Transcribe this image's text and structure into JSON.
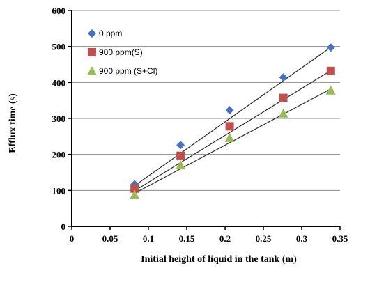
{
  "chart_data": {
    "type": "scatter",
    "title": "",
    "xlabel": "Initial height of liquid in the tank (m)",
    "ylabel": "Efflux time (s)",
    "xlim": [
      0,
      0.35
    ],
    "ylim": [
      0,
      600
    ],
    "x_ticks": [
      0,
      0.05,
      0.1,
      0.15,
      0.2,
      0.25,
      0.3,
      0.35
    ],
    "x_tick_labels": [
      "0",
      "0.05",
      "0.1",
      "0.15",
      "0.2",
      "0.25",
      "0.3",
      "0.35"
    ],
    "y_ticks": [
      0,
      100,
      200,
      300,
      400,
      500,
      600
    ],
    "y_tick_labels": [
      "0",
      "100",
      "200",
      "300",
      "400",
      "500",
      "600"
    ],
    "grid": "horizontal",
    "legend_position": "top-left",
    "series": [
      {
        "name": "0 ppm",
        "marker": "diamond",
        "color": "#4472C4",
        "x": [
          0.082,
          0.142,
          0.206,
          0.276,
          0.338
        ],
        "y": [
          117,
          226,
          323,
          414,
          497
        ],
        "trendline": [
          [
            0.082,
            113
          ],
          [
            0.338,
            498
          ]
        ]
      },
      {
        "name": "900 ppm(S)",
        "marker": "square",
        "color": "#C0504D",
        "x": [
          0.082,
          0.142,
          0.206,
          0.276,
          0.338
        ],
        "y": [
          105,
          196,
          278,
          357,
          432
        ],
        "trendline": [
          [
            0.082,
            99
          ],
          [
            0.338,
            433
          ]
        ]
      },
      {
        "name": "900 ppm (S+Cl)",
        "marker": "triangle",
        "color": "#9BBB59",
        "x": [
          0.082,
          0.142,
          0.206,
          0.276,
          0.338
        ],
        "y": [
          88,
          170,
          246,
          314,
          378
        ],
        "trendline": [
          [
            0.082,
            92
          ],
          [
            0.338,
            382
          ]
        ]
      }
    ]
  }
}
